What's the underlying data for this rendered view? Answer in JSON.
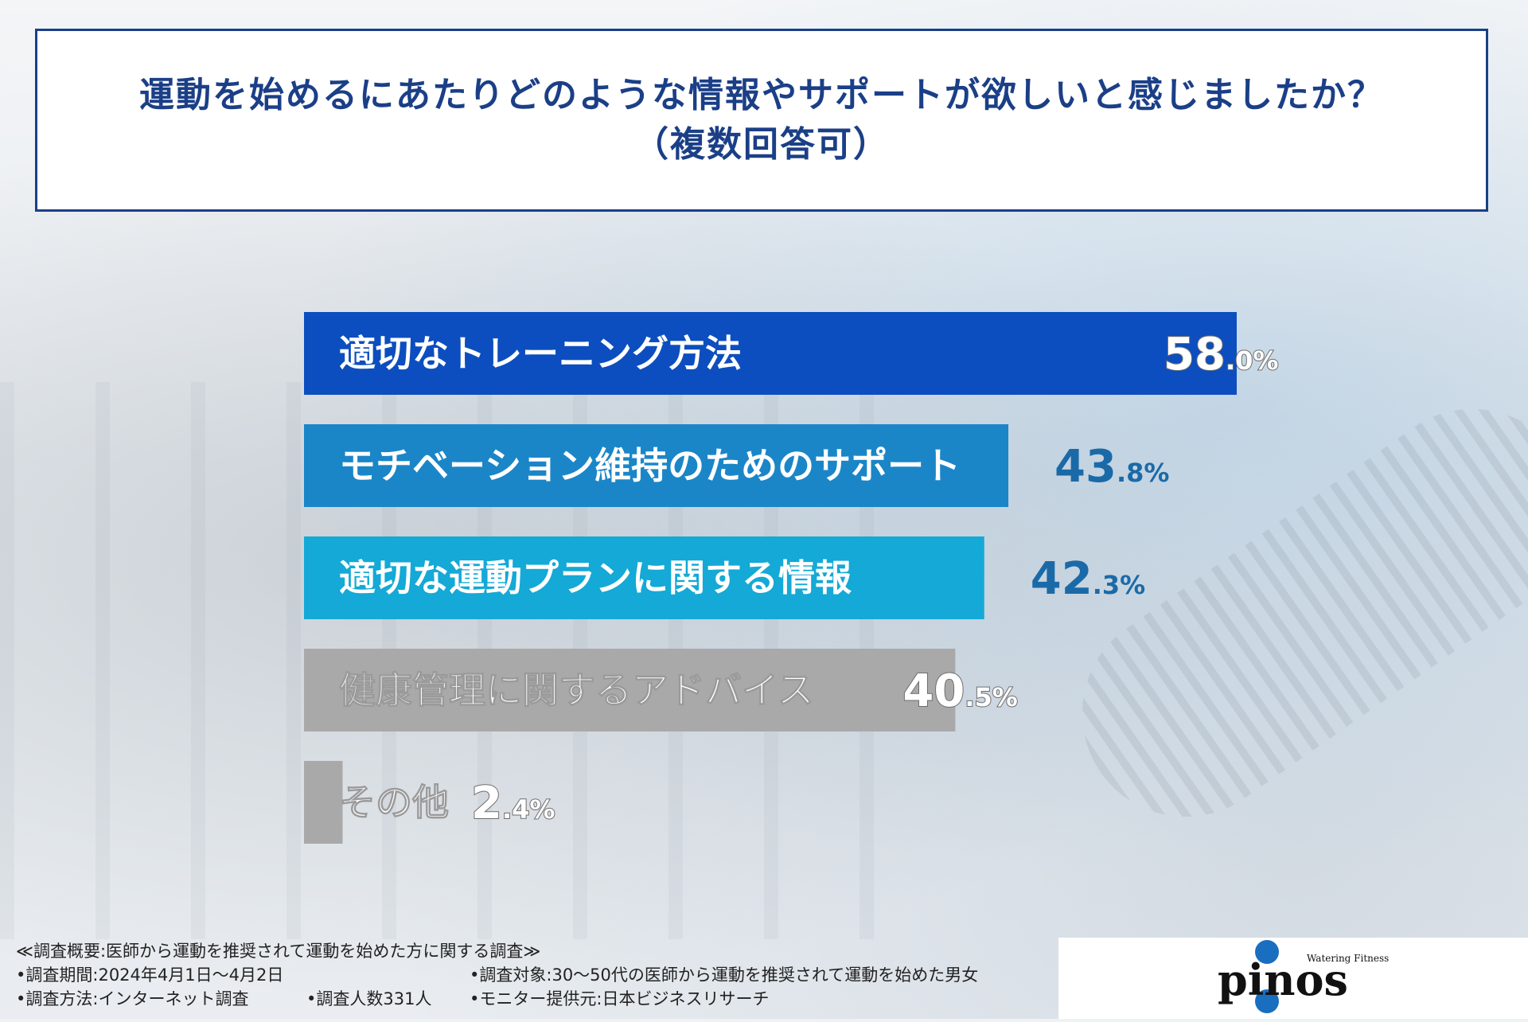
{
  "title": {
    "line1": "運動を始めるにあたりどのような情報やサポートが欲しいと感じましたか？",
    "line2": "（複数回答可）"
  },
  "chart_data": {
    "type": "bar",
    "orientation": "horizontal",
    "categories": [
      "適切なトレーニング方法",
      "モチベーション維持のためのサポート",
      "適切な運動プランに関する情報",
      "健康管理に関するアドバイス",
      "その他"
    ],
    "values": [
      58.0,
      43.8,
      42.3,
      40.5,
      2.4
    ],
    "value_labels": [
      {
        "int": "58",
        "dec": ".0%"
      },
      {
        "int": "43",
        "dec": ".8%"
      },
      {
        "int": "42",
        "dec": ".3%"
      },
      {
        "int": "40",
        "dec": ".5%"
      },
      {
        "int": "2",
        "dec": ".4%"
      }
    ],
    "colors": [
      "#0c4ebf",
      "#1a86c8",
      "#14a9d6",
      "#a9a9a9",
      "#a9a9a9"
    ],
    "value_colors": [
      "#ffffff",
      "#1b6aa8",
      "#1b6aa8",
      "#ffffff",
      "#ffffff"
    ],
    "xlim": [
      0,
      58
    ]
  },
  "footer": {
    "heading": "≪調査概要:医師から運動を推奨されて運動を始めた方に関する調査≫",
    "period": "•調査期間:2024年4月1日〜4月2日",
    "target": "•調査対象:30〜50代の医師から運動を推奨されて運動を始めた男女",
    "method": "•調査方法:インターネット調査",
    "count": "•調査人数331人",
    "provider": "•モニター提供元:日本ビジネスリサーチ"
  },
  "logo": {
    "name": "pinos",
    "tagline": "Watering Fitness",
    "brand_color": "#1a6ec0"
  }
}
